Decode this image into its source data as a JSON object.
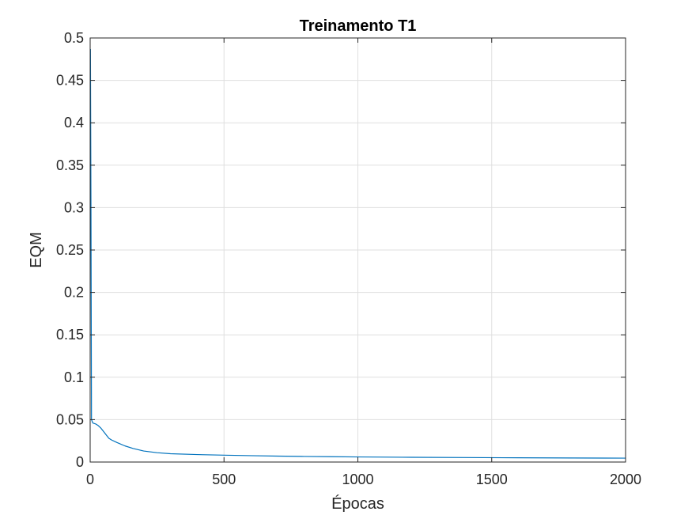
{
  "chart_data": {
    "type": "line",
    "title": "Treinamento T1",
    "xlabel": "Épocas",
    "ylabel": "EQM",
    "xlim": [
      0,
      2000
    ],
    "ylim": [
      0,
      0.5
    ],
    "xticks": [
      0,
      500,
      1000,
      1500,
      2000
    ],
    "xtick_labels": [
      "0",
      "500",
      "1000",
      "1500",
      "2000"
    ],
    "yticks": [
      0,
      0.05,
      0.1,
      0.15,
      0.2,
      0.25,
      0.3,
      0.35,
      0.4,
      0.45,
      0.5
    ],
    "ytick_labels": [
      "0",
      "0.05",
      "0.1",
      "0.15",
      "0.2",
      "0.25",
      "0.3",
      "0.35",
      "0.4",
      "0.45",
      "0.5"
    ],
    "grid": true,
    "series": [
      {
        "color": "#0072BD",
        "x": [
          1,
          3,
          5,
          10,
          20,
          30,
          40,
          50,
          60,
          70,
          80,
          100,
          130,
          160,
          200,
          250,
          300,
          400,
          500,
          600,
          700,
          800,
          900,
          1000,
          1200,
          1400,
          1600,
          1800,
          2000
        ],
        "y": [
          0.487,
          0.3,
          0.05,
          0.046,
          0.045,
          0.043,
          0.04,
          0.036,
          0.032,
          0.028,
          0.026,
          0.023,
          0.019,
          0.016,
          0.013,
          0.011,
          0.0098,
          0.0088,
          0.0081,
          0.0075,
          0.007,
          0.0066,
          0.0063,
          0.006,
          0.0056,
          0.0053,
          0.005,
          0.0048,
          0.0046
        ]
      }
    ]
  }
}
